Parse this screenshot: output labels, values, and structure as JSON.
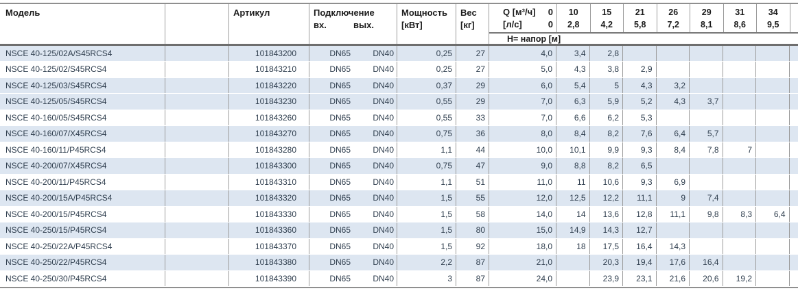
{
  "header": {
    "model": "Модель",
    "article": "Артикул",
    "connection": "Подключение",
    "connection_in": "вх.",
    "connection_out": "вых.",
    "power_line1": "Мощность",
    "power_line2": "[кВт]",
    "weight_line1": "Вес",
    "weight_line2": "[кг]",
    "q_label_m3h": "Q [м³/ч]",
    "q_zero_m3h": "0",
    "q_label_ls": "[л/с]",
    "q_zero_ls": "0",
    "head_row_label": "Н= напор [м]",
    "q_columns": [
      {
        "m3h": "10",
        "ls": "2,8"
      },
      {
        "m3h": "15",
        "ls": "4,2"
      },
      {
        "m3h": "21",
        "ls": "5,8"
      },
      {
        "m3h": "26",
        "ls": "7,2"
      },
      {
        "m3h": "29",
        "ls": "8,1"
      },
      {
        "m3h": "31",
        "ls": "8,6"
      },
      {
        "m3h": "34",
        "ls": "9,5"
      }
    ]
  },
  "rows": [
    {
      "shaded": true,
      "model": "NSCE 40-125/02A/S45RCS4",
      "article": "101843200",
      "in": "DN65",
      "out": "DN40",
      "power": "0,25",
      "weight": "27",
      "head": [
        "4,0",
        "3,4",
        "2,8",
        "",
        "",
        "",
        "",
        ""
      ]
    },
    {
      "shaded": false,
      "model": "NSCE 40-125/02/S45RCS4",
      "article": "101843210",
      "in": "DN65",
      "out": "DN40",
      "power": "0,25",
      "weight": "27",
      "head": [
        "5,0",
        "4,3",
        "3,8",
        "2,9",
        "",
        "",
        "",
        ""
      ]
    },
    {
      "shaded": true,
      "model": "NSCE 40-125/03/S45RCS4",
      "article": "101843220",
      "in": "DN65",
      "out": "DN40",
      "power": "0,37",
      "weight": "29",
      "head": [
        "6,0",
        "5,4",
        "5",
        "4,3",
        "3,2",
        "",
        "",
        ""
      ]
    },
    {
      "shaded": true,
      "model": "NSCE 40-125/05/S45RCS4",
      "article": "101843230",
      "in": "DN65",
      "out": "DN40",
      "power": "0,55",
      "weight": "29",
      "head": [
        "7,0",
        "6,3",
        "5,9",
        "5,2",
        "4,3",
        "3,7",
        "",
        ""
      ]
    },
    {
      "shaded": false,
      "model": "NSCE 40-160/05/S45RCS4",
      "article": "101843260",
      "in": "DN65",
      "out": "DN40",
      "power": "0,55",
      "weight": "33",
      "head": [
        "7,0",
        "6,6",
        "6,2",
        "5,3",
        "",
        "",
        "",
        ""
      ]
    },
    {
      "shaded": true,
      "model": "NSCE 40-160/07/X45RCS4",
      "article": "101843270",
      "in": "DN65",
      "out": "DN40",
      "power": "0,75",
      "weight": "36",
      "head": [
        "8,0",
        "8,4",
        "8,2",
        "7,6",
        "6,4",
        "5,7",
        "",
        ""
      ]
    },
    {
      "shaded": false,
      "model": "NSCE 40-160/11/P45RCS4",
      "article": "101843280",
      "in": "DN65",
      "out": "DN40",
      "power": "1,1",
      "weight": "44",
      "head": [
        "10,0",
        "10,1",
        "9,9",
        "9,3",
        "8,4",
        "7,8",
        "7",
        ""
      ]
    },
    {
      "shaded": true,
      "model": "NSCE 40-200/07/X45RCS4",
      "article": "101843300",
      "in": "DN65",
      "out": "DN40",
      "power": "0,75",
      "weight": "47",
      "head": [
        "9,0",
        "8,8",
        "8,2",
        "6,5",
        "",
        "",
        "",
        ""
      ]
    },
    {
      "shaded": false,
      "model": "NSCE 40-200/11/P45RCS4",
      "article": "101843310",
      "in": "DN65",
      "out": "DN40",
      "power": "1,1",
      "weight": "51",
      "head": [
        "11,0",
        "11",
        "10,6",
        "9,3",
        "6,9",
        "",
        "",
        ""
      ]
    },
    {
      "shaded": true,
      "model": "NSCE 40-200/15A/P45RCS4",
      "article": "101843320",
      "in": "DN65",
      "out": "DN40",
      "power": "1,5",
      "weight": "55",
      "head": [
        "12,0",
        "12,5",
        "12,2",
        "11,1",
        "9",
        "7,4",
        "",
        ""
      ]
    },
    {
      "shaded": false,
      "model": "NSCE 40-200/15/P45RCS4",
      "article": "101843330",
      "in": "DN65",
      "out": "DN40",
      "power": "1,5",
      "weight": "58",
      "head": [
        "14,0",
        "14",
        "13,6",
        "12,8",
        "11,1",
        "9,8",
        "8,3",
        "6,4"
      ]
    },
    {
      "shaded": true,
      "model": "NSCE 40-250/15/P45RCS4",
      "article": "101843360",
      "in": "DN65",
      "out": "DN40",
      "power": "1,5",
      "weight": "80",
      "head": [
        "15,0",
        "14,9",
        "14,3",
        "12,7",
        "",
        "",
        "",
        ""
      ]
    },
    {
      "shaded": false,
      "model": "NSCE 40-250/22A/P45RCS4",
      "article": "101843370",
      "in": "DN65",
      "out": "DN40",
      "power": "1,5",
      "weight": "92",
      "head": [
        "18,0",
        "18",
        "17,5",
        "16,4",
        "14,3",
        "",
        "",
        ""
      ]
    },
    {
      "shaded": true,
      "model": "NSCE 40-250/22/P45RCS4",
      "article": "101843380",
      "in": "DN65",
      "out": "DN40",
      "power": "2,2",
      "weight": "87",
      "head": [
        "21,0",
        "",
        "20,3",
        "19,4",
        "17,6",
        "16,4",
        "",
        ""
      ]
    },
    {
      "shaded": false,
      "model": "NSCE 40-250/30/P45RCS4",
      "article": "101843390",
      "in": "DN65",
      "out": "DN40",
      "power": "3",
      "weight": "87",
      "head": [
        "24,0",
        "",
        "23,9",
        "23,1",
        "21,6",
        "20,6",
        "19,2",
        ""
      ]
    }
  ],
  "colors": {
    "row_shaded": "#dde6f1",
    "border": "#9a9a9a",
    "border_dark": "#6e6e6e"
  }
}
